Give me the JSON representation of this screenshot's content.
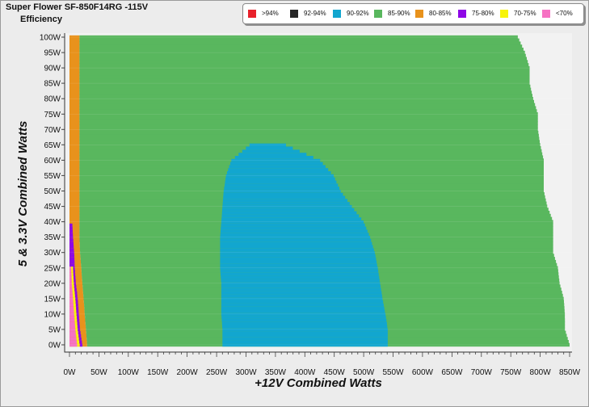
{
  "chart_data": {
    "type": "heatmap",
    "title": "Super Flower SF-850F14RG -115V",
    "subtitle": "Efficiency",
    "xlabel": "+12V Combined Watts",
    "ylabel": "5 & 3.3V Combined Watts",
    "x_ticks": [
      "0W",
      "50W",
      "100W",
      "150W",
      "200W",
      "250W",
      "300W",
      "350W",
      "400W",
      "450W",
      "500W",
      "550W",
      "600W",
      "650W",
      "700W",
      "750W",
      "800W",
      "850W"
    ],
    "y_ticks": [
      "0W",
      "5W",
      "10W",
      "15W",
      "20W",
      "25W",
      "30W",
      "35W",
      "40W",
      "45W",
      "50W",
      "55W",
      "60W",
      "65W",
      "70W",
      "75W",
      "80W",
      "85W",
      "90W",
      "95W",
      "100W"
    ],
    "xlim": [
      0,
      850
    ],
    "ylim": [
      0,
      100
    ],
    "legend_position": "top-right",
    "legend": [
      {
        "label": ">94%",
        "color": "#e8212b"
      },
      {
        "label": "92-94%",
        "color": "#262626"
      },
      {
        "label": "90-92%",
        "color": "#12a6cf"
      },
      {
        "label": "85-90%",
        "color": "#59b75e"
      },
      {
        "label": "80-85%",
        "color": "#e8921c"
      },
      {
        "label": "75-80%",
        "color": "#8e07e6"
      },
      {
        "label": "70-75%",
        "color": "#f7f40a"
      },
      {
        "label": "<70%",
        "color": "#f672c3"
      }
    ],
    "regions": {
      "max_load_12v_by_y": [
        [
          0,
          850
        ],
        [
          5,
          842
        ],
        [
          10,
          842
        ],
        [
          15,
          840
        ],
        [
          20,
          833
        ],
        [
          25,
          830
        ],
        [
          30,
          822
        ],
        [
          35,
          822
        ],
        [
          40,
          822
        ],
        [
          45,
          812
        ],
        [
          50,
          806
        ],
        [
          55,
          806
        ],
        [
          60,
          806
        ],
        [
          65,
          800
        ],
        [
          70,
          796
        ],
        [
          75,
          796
        ],
        [
          80,
          788
        ],
        [
          85,
          782
        ],
        [
          90,
          782
        ],
        [
          95,
          774
        ],
        [
          100,
          762
        ]
      ],
      "efficiency_85_90_start_by_y": [
        [
          0,
          30
        ],
        [
          5,
          28
        ],
        [
          10,
          26
        ],
        [
          15,
          24
        ],
        [
          20,
          22
        ],
        [
          25,
          20
        ],
        [
          30,
          18
        ],
        [
          35,
          17
        ],
        [
          40,
          17
        ],
        [
          45,
          17
        ],
        [
          50,
          17
        ],
        [
          55,
          17
        ],
        [
          60,
          17
        ],
        [
          65,
          17
        ],
        [
          70,
          17
        ],
        [
          75,
          17
        ],
        [
          80,
          17
        ],
        [
          85,
          17
        ],
        [
          90,
          17
        ],
        [
          95,
          17
        ],
        [
          100,
          17
        ]
      ],
      "efficiency_90_92": [
        [
          0,
          260,
          541
        ],
        [
          5,
          260,
          541
        ],
        [
          10,
          258,
          537
        ],
        [
          15,
          258,
          532
        ],
        [
          20,
          258,
          528
        ],
        [
          25,
          256,
          524
        ],
        [
          30,
          256,
          519
        ],
        [
          35,
          256,
          511
        ],
        [
          40,
          258,
          500
        ],
        [
          45,
          260,
          480
        ],
        [
          50,
          262,
          461
        ],
        [
          55,
          266,
          449
        ],
        [
          60,
          275,
          426
        ],
        [
          65,
          306,
          368
        ]
      ],
      "efficiency_under_80_by_y": [
        [
          0,
          13,
          22
        ],
        [
          5,
          10,
          18
        ],
        [
          10,
          8,
          16
        ],
        [
          15,
          6,
          14
        ],
        [
          20,
          4,
          11
        ],
        [
          25,
          3,
          9
        ],
        [
          30,
          2,
          8
        ],
        [
          35,
          1,
          6
        ],
        [
          39,
          1,
          5
        ]
      ]
    }
  }
}
